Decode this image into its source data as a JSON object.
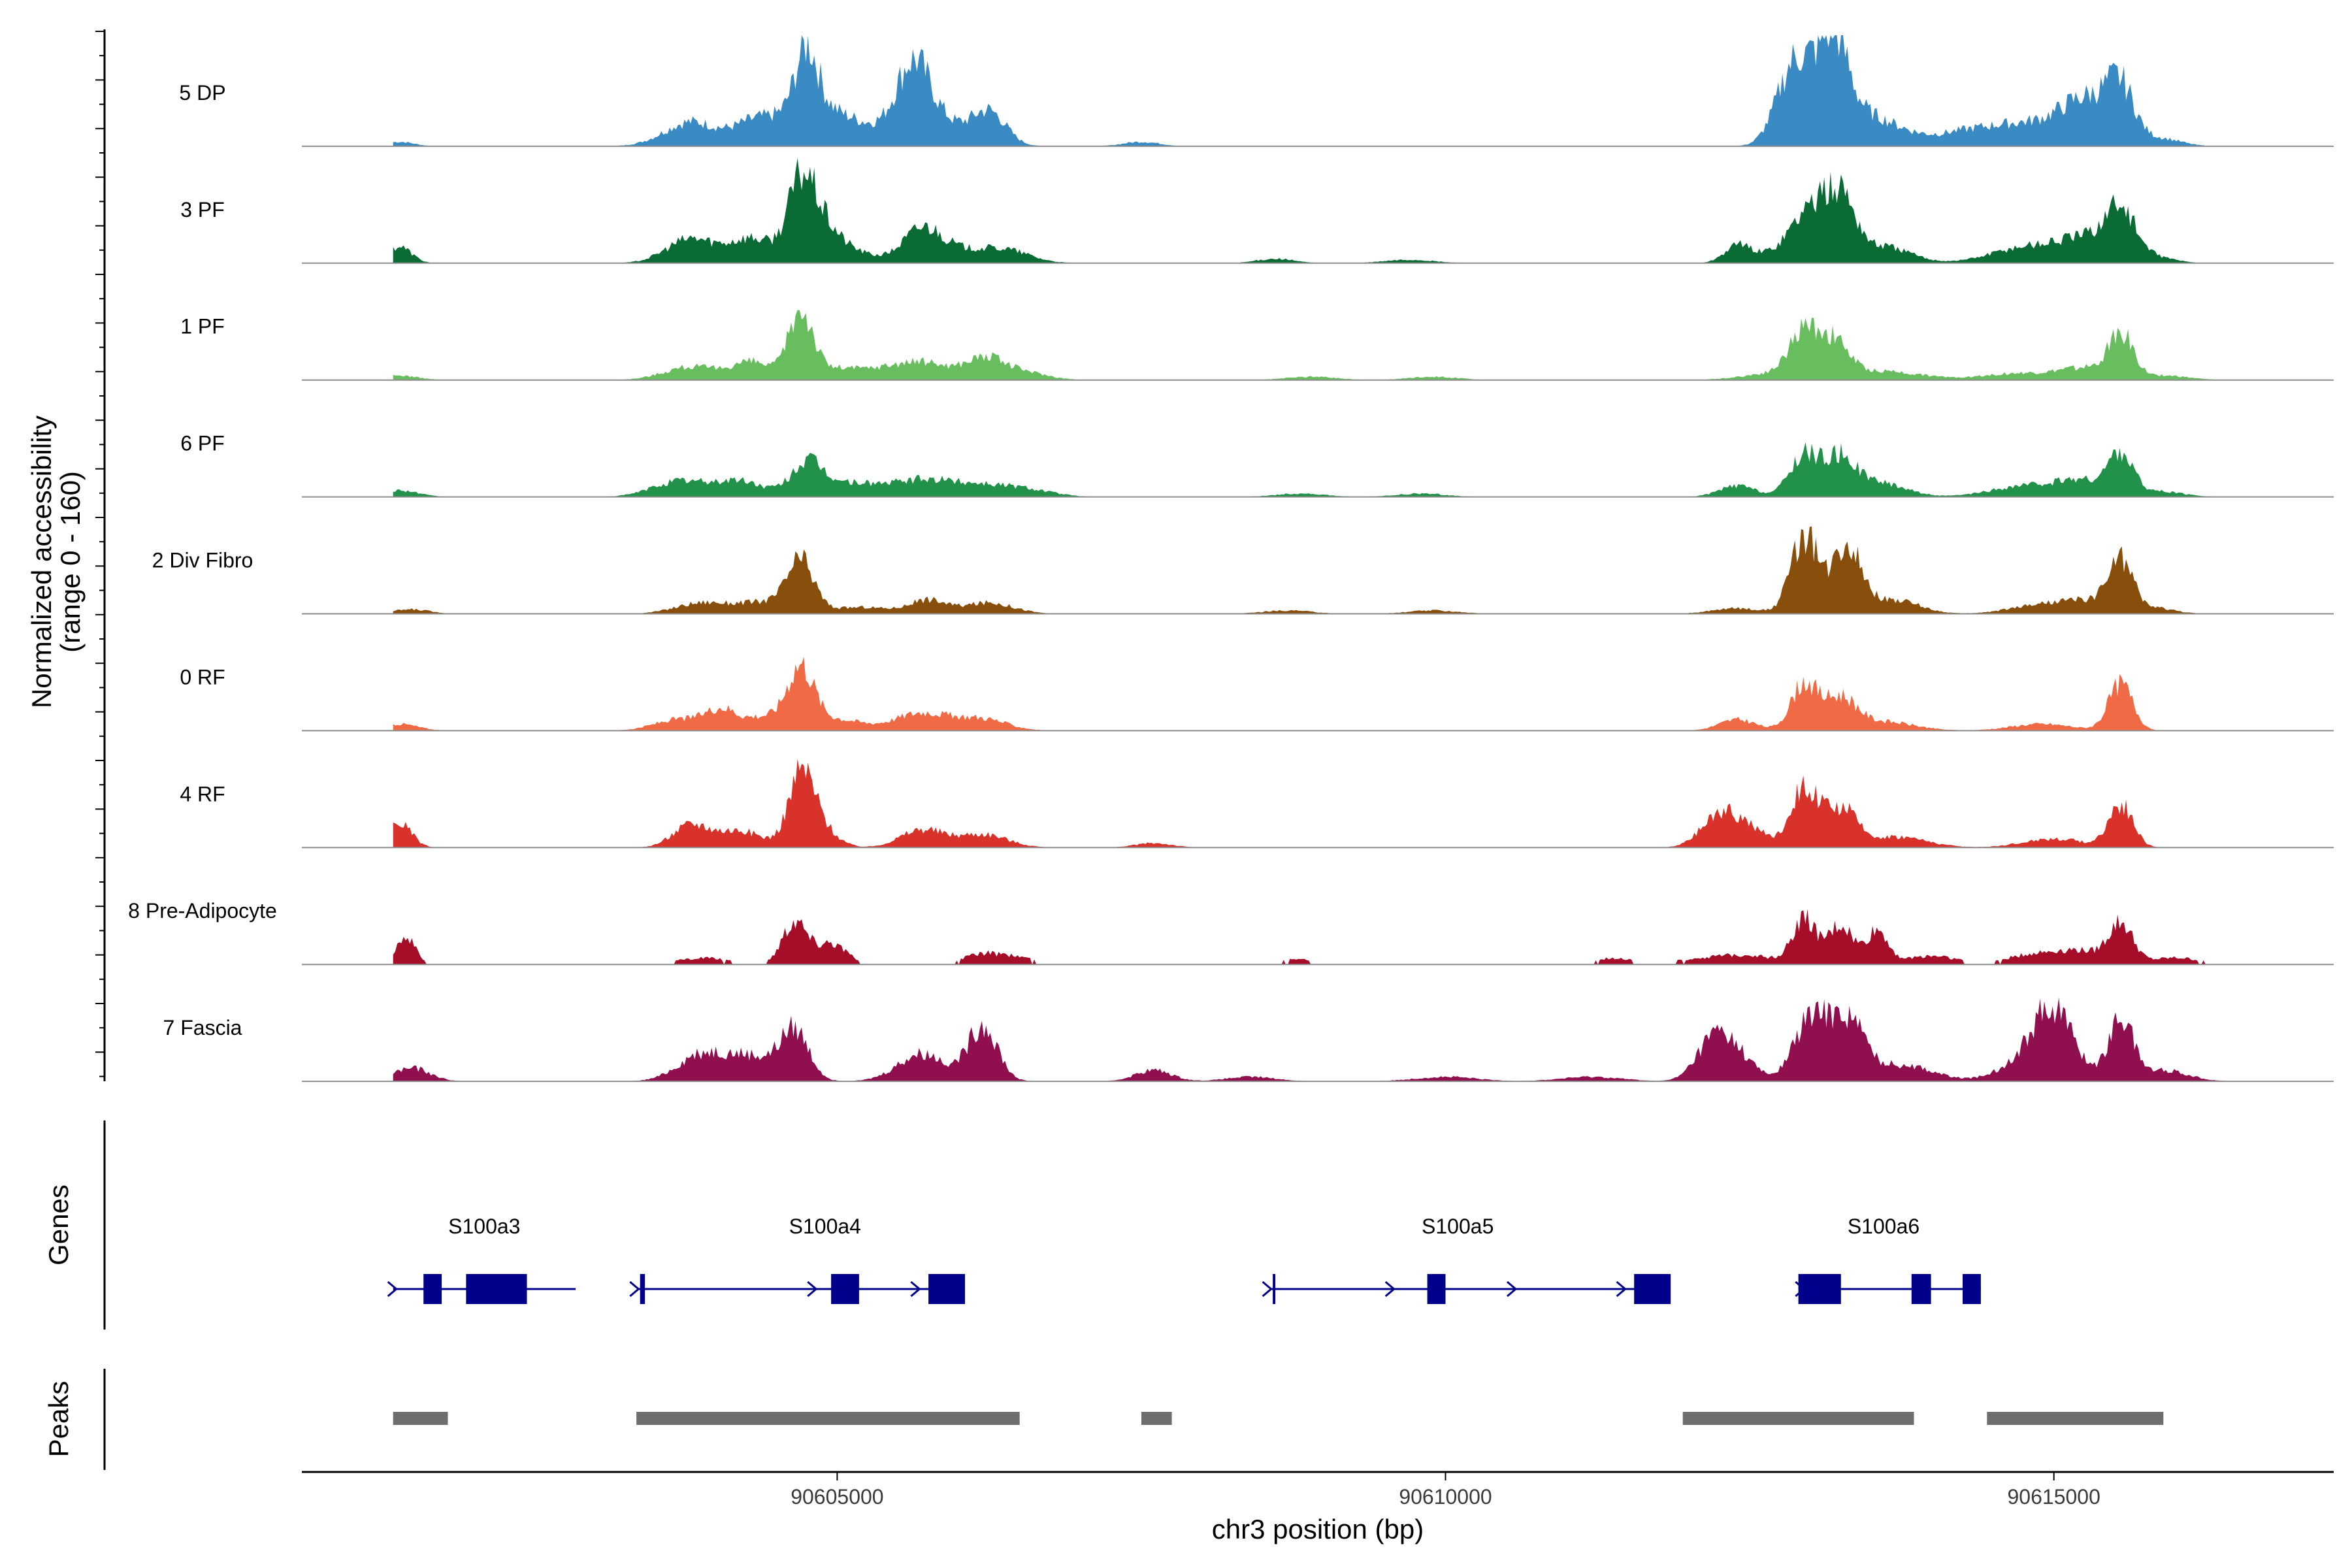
{
  "chart_data": {
    "type": "area",
    "title": "",
    "ylabel_line1": "Normalized accessibility",
    "ylabel_line2": "(range 0 - 160)",
    "xlabel": "chr3 position (bp)",
    "xlim": [
      90600600,
      90617300
    ],
    "x_ticks": [
      {
        "value": 90605000,
        "label": "90605000"
      },
      {
        "value": 90610000,
        "label": "90610000"
      },
      {
        "value": 90615000,
        "label": "90615000"
      }
    ],
    "y_range": [
      0,
      160
    ],
    "series": [
      {
        "name": "5 DP",
        "color": "#3A8BC4",
        "scale": 1.0,
        "blocky": false,
        "peaks": [
          [
            90601400,
            0.04,
            120
          ],
          [
            90603800,
            0.22,
            220
          ],
          [
            90604300,
            0.15,
            160
          ],
          [
            90604750,
            0.55,
            90
          ],
          [
            90604720,
            0.3,
            260
          ],
          [
            90605000,
            0.12,
            220
          ],
          [
            90605300,
            0.1,
            200
          ],
          [
            90605620,
            0.65,
            140
          ],
          [
            90605850,
            0.2,
            200
          ],
          [
            90606250,
            0.3,
            140
          ],
          [
            90607500,
            0.04,
            150
          ],
          [
            90612850,
            0.55,
            140
          ],
          [
            90613050,
            0.4,
            180
          ],
          [
            90613200,
            0.62,
            110
          ],
          [
            90613400,
            0.22,
            200
          ],
          [
            90613700,
            0.12,
            220
          ],
          [
            90614200,
            0.06,
            200
          ],
          [
            90614700,
            0.2,
            350
          ],
          [
            90615300,
            0.4,
            230
          ],
          [
            90615550,
            0.38,
            110
          ],
          [
            90615900,
            0.06,
            160
          ]
        ]
      },
      {
        "name": "3 PF",
        "color": "#0A6B35",
        "scale": 1.0,
        "blocky": false,
        "peaks": [
          [
            90601400,
            0.15,
            100
          ],
          [
            90603800,
            0.22,
            200
          ],
          [
            90604300,
            0.22,
            180
          ],
          [
            90604700,
            0.6,
            110
          ],
          [
            90604850,
            0.3,
            150
          ],
          [
            90605100,
            0.1,
            200
          ],
          [
            90605700,
            0.28,
            160
          ],
          [
            90606000,
            0.1,
            250
          ],
          [
            90606400,
            0.1,
            200
          ],
          [
            90608600,
            0.04,
            150
          ],
          [
            90609700,
            0.03,
            200
          ],
          [
            90612400,
            0.15,
            110
          ],
          [
            90612800,
            0.12,
            200
          ],
          [
            90613000,
            0.4,
            140
          ],
          [
            90613250,
            0.55,
            120
          ],
          [
            90613600,
            0.15,
            220
          ],
          [
            90614800,
            0.15,
            300
          ],
          [
            90615300,
            0.2,
            220
          ],
          [
            90615550,
            0.42,
            120
          ],
          [
            90615850,
            0.05,
            150
          ]
        ]
      },
      {
        "name": "1 PF",
        "color": "#68BE5E",
        "scale": 1.0,
        "blocky": false,
        "peaks": [
          [
            90601400,
            0.04,
            150
          ],
          [
            90603800,
            0.12,
            220
          ],
          [
            90604300,
            0.16,
            160
          ],
          [
            90604700,
            0.6,
            100
          ],
          [
            90605000,
            0.1,
            200
          ],
          [
            90605500,
            0.12,
            220
          ],
          [
            90605800,
            0.1,
            180
          ],
          [
            90606200,
            0.18,
            150
          ],
          [
            90606500,
            0.08,
            200
          ],
          [
            90608900,
            0.03,
            200
          ],
          [
            90609900,
            0.03,
            200
          ],
          [
            90612700,
            0.06,
            250
          ],
          [
            90612950,
            0.4,
            120
          ],
          [
            90613200,
            0.3,
            120
          ],
          [
            90613600,
            0.08,
            300
          ],
          [
            90614700,
            0.06,
            300
          ],
          [
            90615250,
            0.1,
            200
          ],
          [
            90615550,
            0.4,
            100
          ],
          [
            90615900,
            0.04,
            200
          ]
        ]
      },
      {
        "name": "6 PF",
        "color": "#22924A",
        "scale": 1.0,
        "blocky": false,
        "peaks": [
          [
            90601400,
            0.06,
            150
          ],
          [
            90603700,
            0.14,
            220
          ],
          [
            90604200,
            0.14,
            200
          ],
          [
            90604750,
            0.28,
            130
          ],
          [
            90605100,
            0.12,
            250
          ],
          [
            90605700,
            0.14,
            250
          ],
          [
            90606200,
            0.1,
            250
          ],
          [
            90606600,
            0.05,
            200
          ],
          [
            90608800,
            0.03,
            200
          ],
          [
            90609800,
            0.03,
            200
          ],
          [
            90612400,
            0.1,
            150
          ],
          [
            90612950,
            0.38,
            120
          ],
          [
            90613250,
            0.35,
            130
          ],
          [
            90613600,
            0.12,
            200
          ],
          [
            90614800,
            0.1,
            300
          ],
          [
            90615250,
            0.12,
            200
          ],
          [
            90615550,
            0.35,
            100
          ],
          [
            90615850,
            0.05,
            200
          ]
        ]
      },
      {
        "name": "2 Div Fibro",
        "color": "#874E0C",
        "scale": 1.0,
        "blocky": false,
        "peaks": [
          [
            90601500,
            0.04,
            150
          ],
          [
            90603900,
            0.1,
            220
          ],
          [
            90604400,
            0.1,
            200
          ],
          [
            90604700,
            0.45,
            110
          ],
          [
            90605200,
            0.06,
            250
          ],
          [
            90605750,
            0.12,
            150
          ],
          [
            90606250,
            0.1,
            200
          ],
          [
            90608700,
            0.03,
            200
          ],
          [
            90609900,
            0.03,
            200
          ],
          [
            90612400,
            0.05,
            200
          ],
          [
            90612950,
            0.7,
            110
          ],
          [
            90613300,
            0.65,
            120
          ],
          [
            90613700,
            0.12,
            200
          ],
          [
            90614900,
            0.08,
            250
          ],
          [
            90615300,
            0.1,
            200
          ],
          [
            90615550,
            0.45,
            100
          ],
          [
            90615850,
            0.05,
            150
          ]
        ]
      },
      {
        "name": "0 RF",
        "color": "#F06A45",
        "scale": 1.0,
        "blocky": false,
        "peaks": [
          [
            90601400,
            0.06,
            150
          ],
          [
            90603700,
            0.1,
            200
          ],
          [
            90604050,
            0.18,
            130
          ],
          [
            90604400,
            0.12,
            150
          ],
          [
            90604700,
            0.55,
            110
          ],
          [
            90605000,
            0.1,
            200
          ],
          [
            90605700,
            0.16,
            230
          ],
          [
            90606200,
            0.1,
            200
          ],
          [
            90612400,
            0.1,
            150
          ],
          [
            90612950,
            0.42,
            110
          ],
          [
            90613250,
            0.28,
            130
          ],
          [
            90613600,
            0.08,
            250
          ],
          [
            90614900,
            0.06,
            250
          ],
          [
            90615550,
            0.42,
            100
          ]
        ]
      },
      {
        "name": "4 RF",
        "color": "#D8322A",
        "scale": 1.0,
        "blocky": false,
        "peaks": [
          [
            90601400,
            0.22,
            100
          ],
          [
            90603800,
            0.2,
            150
          ],
          [
            90604200,
            0.15,
            180
          ],
          [
            90604700,
            0.5,
            100
          ],
          [
            90604800,
            0.25,
            150
          ],
          [
            90605700,
            0.16,
            180
          ],
          [
            90606200,
            0.12,
            200
          ],
          [
            90607600,
            0.04,
            150
          ],
          [
            90612250,
            0.28,
            150
          ],
          [
            90612500,
            0.15,
            150
          ],
          [
            90612950,
            0.55,
            110
          ],
          [
            90613250,
            0.35,
            120
          ],
          [
            90613700,
            0.1,
            250
          ],
          [
            90615000,
            0.08,
            250
          ],
          [
            90615550,
            0.38,
            100
          ]
        ]
      },
      {
        "name": "8 Pre-Adipocyte",
        "color": "#A50D29",
        "scale": 1.0,
        "blocky": true,
        "peaks": [
          [
            90601450,
            0.25,
            80
          ],
          [
            90603900,
            0.06,
            200
          ],
          [
            90604650,
            0.4,
            100
          ],
          [
            90604950,
            0.2,
            120
          ],
          [
            90606200,
            0.1,
            150
          ],
          [
            90606500,
            0.06,
            120
          ],
          [
            90608800,
            0.05,
            150
          ],
          [
            90611400,
            0.06,
            150
          ],
          [
            90612100,
            0.05,
            200
          ],
          [
            90612500,
            0.08,
            200
          ],
          [
            90612950,
            0.4,
            100
          ],
          [
            90613250,
            0.35,
            100
          ],
          [
            90613550,
            0.3,
            90
          ],
          [
            90614000,
            0.08,
            200
          ],
          [
            90614800,
            0.08,
            200
          ],
          [
            90615200,
            0.12,
            200
          ],
          [
            90615550,
            0.35,
            100
          ],
          [
            90616000,
            0.06,
            200
          ]
        ]
      },
      {
        "name": "7 Fascia",
        "color": "#900F4F",
        "scale": 1.0,
        "blocky": false,
        "peaks": [
          [
            90601500,
            0.12,
            150
          ],
          [
            90603900,
            0.25,
            200
          ],
          [
            90604300,
            0.2,
            180
          ],
          [
            90604650,
            0.45,
            120
          ],
          [
            90605700,
            0.25,
            200
          ],
          [
            90606200,
            0.5,
            120
          ],
          [
            90607600,
            0.1,
            150
          ],
          [
            90608400,
            0.04,
            200
          ],
          [
            90610000,
            0.04,
            250
          ],
          [
            90611200,
            0.04,
            250
          ],
          [
            90612200,
            0.35,
            140
          ],
          [
            90612400,
            0.2,
            150
          ],
          [
            90612950,
            0.4,
            120
          ],
          [
            90613150,
            0.4,
            130
          ],
          [
            90613350,
            0.4,
            120
          ],
          [
            90613750,
            0.15,
            250
          ],
          [
            90614900,
            0.3,
            250
          ],
          [
            90615000,
            0.4,
            150
          ],
          [
            90615550,
            0.55,
            100
          ],
          [
            90615900,
            0.1,
            200
          ]
        ]
      }
    ],
    "genes": [
      {
        "name": "S100a3",
        "label_x": 90602100,
        "start": 90601350,
        "end": 90602850,
        "exons": [
          [
            90601600,
            90601750
          ],
          [
            90601950,
            90602450
          ]
        ],
        "arrows": [
          90601350
        ]
      },
      {
        "name": "S100a4",
        "label_x": 90604900,
        "start": 90603360,
        "end": 90606050,
        "exons": [
          [
            90603380,
            90603420
          ],
          [
            90604950,
            90605180
          ],
          [
            90605750,
            90606050
          ]
        ],
        "arrows": [
          90603340,
          90604800,
          90605650
        ]
      },
      {
        "name": "S100a5",
        "label_x": 90610100,
        "start": 90608570,
        "end": 90611850,
        "exons": [
          [
            90608580,
            90608600
          ],
          [
            90609850,
            90610000
          ],
          [
            90611550,
            90611850
          ]
        ],
        "arrows": [
          90608540,
          90609550,
          90610550,
          90611450
        ]
      },
      {
        "name": "S100a6",
        "label_x": 90613600,
        "start": 90612900,
        "end": 90614400,
        "exons": [
          [
            90612900,
            90613250
          ],
          [
            90613830,
            90613990
          ],
          [
            90614250,
            90614400
          ]
        ],
        "arrows": [
          90612920
        ]
      }
    ],
    "peak_regions": [
      [
        90601350,
        90601800
      ],
      [
        90603350,
        90606500
      ],
      [
        90607500,
        90607750
      ],
      [
        90611950,
        90613850
      ],
      [
        90614450,
        90615900
      ]
    ],
    "gene_track_title": "Genes",
    "peak_track_title": "Peaks"
  }
}
